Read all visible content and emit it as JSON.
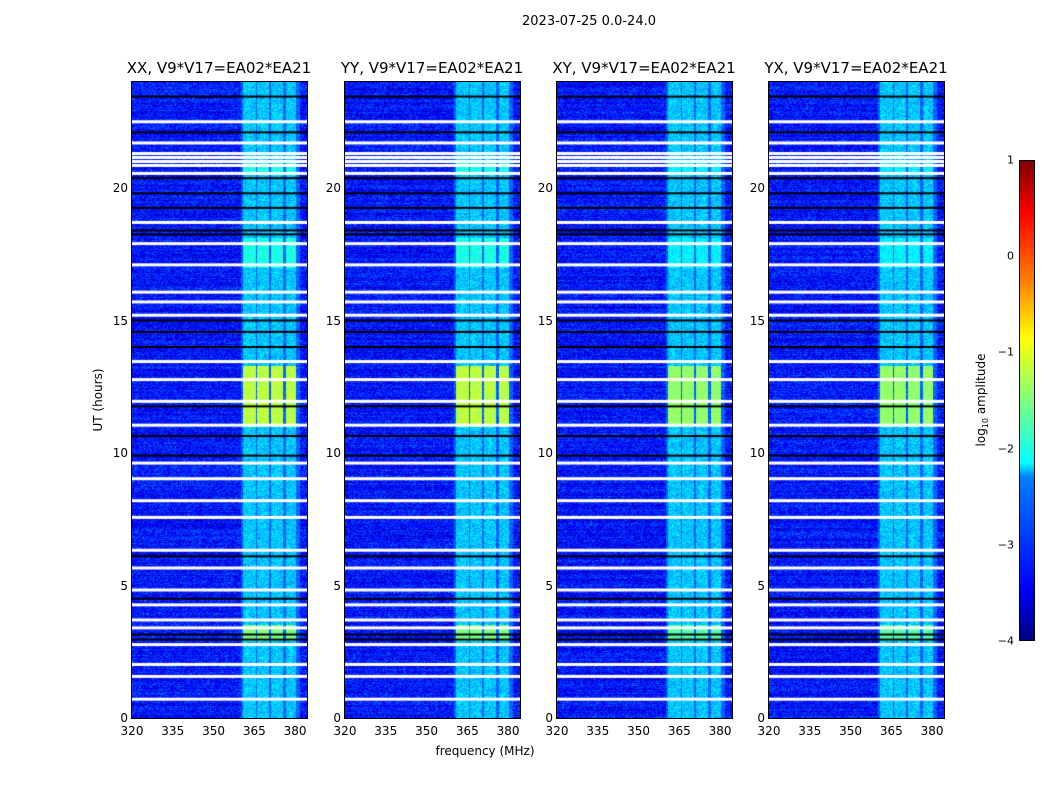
{
  "chart_data": {
    "type": "heatmap",
    "title": "2023-07-25 0.0-24.0",
    "xlabel": "frequency (MHz)",
    "ylabel": "UT (hours)",
    "xlim": [
      320,
      384.4
    ],
    "ylim": [
      0,
      24
    ],
    "xticks": [
      "320",
      "335",
      "350",
      "365",
      "380"
    ],
    "xtick_values": [
      320,
      335,
      350,
      365,
      380
    ],
    "yticks": [
      "0",
      "5",
      "10",
      "15",
      "20"
    ],
    "ytick_values": [
      0,
      5,
      10,
      15,
      20
    ],
    "panels": [
      {
        "title": "XX, V9*V17=EA02*EA21"
      },
      {
        "title": "YY, V9*V17=EA02*EA21"
      },
      {
        "title": "XY, V9*V17=EA02*EA21"
      },
      {
        "title": "YX, V9*V17=EA02*EA21"
      }
    ],
    "colorbar": {
      "label_prefix": "log",
      "label_sub": "10",
      "label_suffix": " amplitude",
      "range": [
        -4,
        1
      ],
      "ticks": [
        "1",
        "0",
        "−1",
        "−2",
        "−3",
        "−4"
      ],
      "tick_values": [
        1,
        0,
        -1,
        -2,
        -3,
        -4
      ],
      "colormap": "jet"
    },
    "background_log_amp": -3.3,
    "band_columns_mhz": [
      [
        361,
        365.5
      ],
      [
        366,
        370.5
      ],
      [
        371,
        375.5
      ],
      [
        376.5,
        380.5
      ]
    ],
    "band_log_amp": -2.4,
    "bright_time_ranges_hours": [
      [
        11.0,
        13.3,
        -1.2
      ],
      [
        2.9,
        3.5,
        -1.5
      ],
      [
        17.0,
        18.1,
        -2.0
      ],
      [
        20.5,
        21.0,
        -2.0
      ]
    ],
    "flagged_white_hours": [
      22.5,
      21.7,
      21.3,
      21.15,
      21.0,
      20.85,
      20.55,
      18.7,
      17.9,
      17.1,
      16.07,
      15.7,
      15.2,
      13.45,
      12.77,
      11.95,
      11.05,
      9.62,
      9.03,
      8.2,
      7.57,
      6.33,
      5.66,
      4.83,
      4.27,
      3.7,
      3.4,
      2.77,
      2.02,
      1.57,
      0.71
    ],
    "dropout_black_hours": [
      23.45,
      22.1,
      20.37,
      19.8,
      19.25,
      18.4,
      18.25,
      15.0,
      14.57,
      14.0,
      11.76,
      10.64,
      9.9,
      6.1,
      4.5,
      3.15,
      2.96
    ]
  }
}
